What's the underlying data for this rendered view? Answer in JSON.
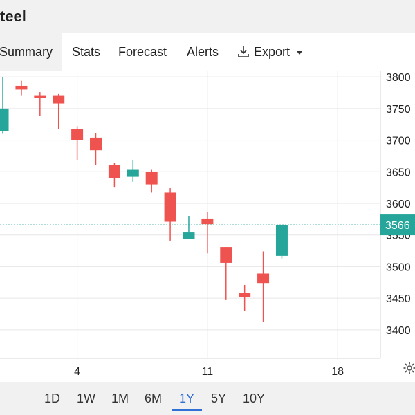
{
  "title": "teel",
  "tabs": [
    {
      "label": "Summary",
      "active": true
    },
    {
      "label": "Stats"
    },
    {
      "label": "Forecast"
    },
    {
      "label": "Alerts"
    }
  ],
  "export": {
    "label": "Export",
    "icon": "download-icon"
  },
  "timeframes": [
    {
      "label": "1D"
    },
    {
      "label": "1W"
    },
    {
      "label": "1M"
    },
    {
      "label": "6M"
    },
    {
      "label": "1Y",
      "active": true
    },
    {
      "label": "5Y"
    },
    {
      "label": "10Y"
    }
  ],
  "colors": {
    "up": "#26a69a",
    "down": "#ef5350",
    "accent": "#2f6fd6"
  },
  "settings_icon": "gear-icon",
  "chart_data": {
    "type": "candlestick",
    "y_ticks": [
      "3800",
      "3750",
      "3700",
      "3650",
      "3600",
      "3550",
      "3500",
      "3450",
      "3400"
    ],
    "x_tick_labels": [
      {
        "label": "4",
        "day": 4
      },
      {
        "label": "11",
        "day": 11
      },
      {
        "label": "18",
        "day": 18
      }
    ],
    "ylim": [
      3355,
      3810
    ],
    "xlim": [
      -0.15,
      20.3
    ],
    "last_price": 3566,
    "last_price_label": "3566",
    "candles": [
      {
        "day": 0,
        "open": 3714,
        "high": 3800,
        "low": 3710,
        "close": 3750
      },
      {
        "day": 1,
        "open": 3786,
        "high": 3794,
        "low": 3770,
        "close": 3780
      },
      {
        "day": 2,
        "open": 3770,
        "high": 3776,
        "low": 3738,
        "close": 3767
      },
      {
        "day": 3,
        "open": 3770,
        "high": 3773,
        "low": 3718,
        "close": 3758
      },
      {
        "day": 4,
        "open": 3718,
        "high": 3722,
        "low": 3669,
        "close": 3700
      },
      {
        "day": 5,
        "open": 3704,
        "high": 3711,
        "low": 3661,
        "close": 3684
      },
      {
        "day": 6,
        "open": 3661,
        "high": 3664,
        "low": 3625,
        "close": 3640
      },
      {
        "day": 7,
        "open": 3642,
        "high": 3669,
        "low": 3634,
        "close": 3653
      },
      {
        "day": 8,
        "open": 3650,
        "high": 3653,
        "low": 3617,
        "close": 3630
      },
      {
        "day": 9,
        "open": 3617,
        "high": 3624,
        "low": 3541,
        "close": 3571
      },
      {
        "day": 10,
        "open": 3544,
        "high": 3580,
        "low": 3544,
        "close": 3554
      },
      {
        "day": 11,
        "open": 3576,
        "high": 3586,
        "low": 3521,
        "close": 3567
      },
      {
        "day": 12,
        "open": 3531,
        "high": 3531,
        "low": 3447,
        "close": 3506
      },
      {
        "day": 13,
        "open": 3458,
        "high": 3471,
        "low": 3430,
        "close": 3452
      },
      {
        "day": 14,
        "open": 3489,
        "high": 3524,
        "low": 3412,
        "close": 3474
      },
      {
        "day": 15,
        "open": 3517,
        "high": 3566,
        "low": 3513,
        "close": 3566
      }
    ]
  }
}
